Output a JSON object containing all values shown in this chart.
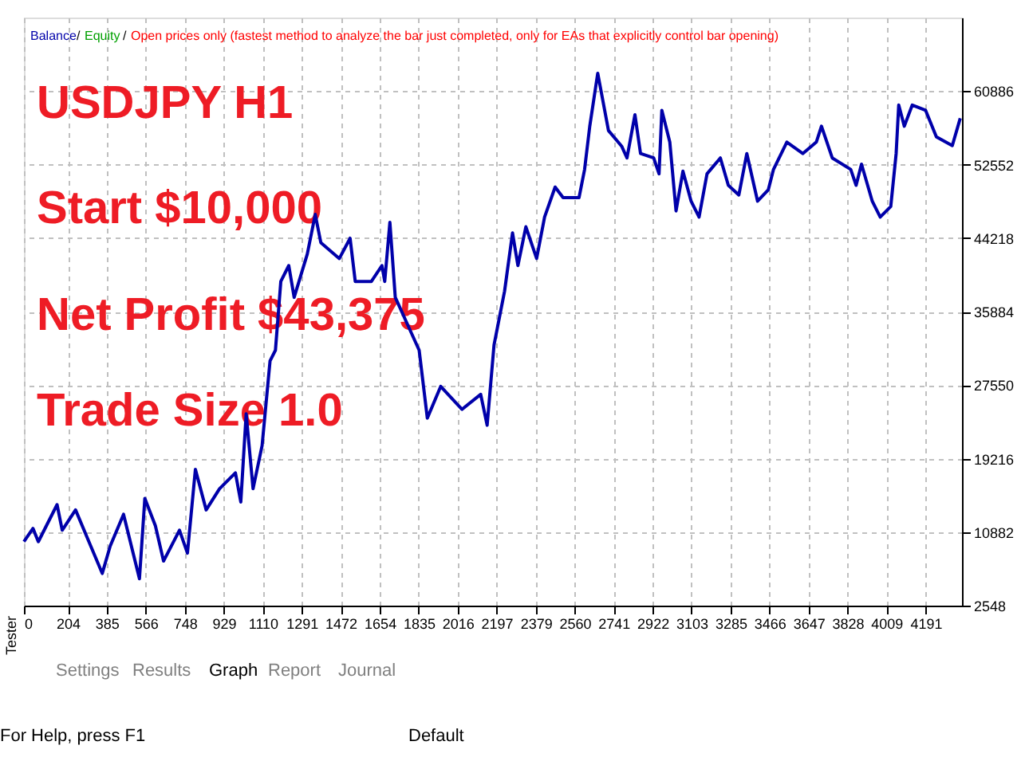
{
  "chart_data": {
    "type": "line",
    "x": [
      0,
      42,
      67,
      154,
      178,
      240,
      302,
      364,
      401,
      463,
      537,
      562,
      611,
      649,
      723,
      760,
      797,
      847,
      909,
      983,
      1008,
      1033,
      1065,
      1107,
      1144,
      1169,
      1194,
      1231,
      1256,
      1317,
      1354,
      1380,
      1466,
      1516,
      1540,
      1615,
      1664,
      1677,
      1701,
      1726,
      1837,
      1875,
      1937,
      2036,
      2123,
      2153,
      2185,
      2234,
      2271,
      2296,
      2333,
      2383,
      2420,
      2469,
      2506,
      2580,
      2606,
      2630,
      2667,
      2717,
      2779,
      2803,
      2840,
      2866,
      2927,
      2952,
      2965,
      3002,
      3031,
      3063,
      3101,
      3138,
      3175,
      3237,
      3274,
      3323,
      3360,
      3410,
      3460,
      3484,
      3546,
      3620,
      3683,
      3707,
      3757,
      3843,
      3868,
      3893,
      3943,
      3980,
      4029,
      4054,
      4066,
      4092,
      4129,
      4191,
      4241,
      4315,
      4352
    ],
    "series": [
      {
        "name": "Balance",
        "color": "#0000aa",
        "values": [
          9800,
          11300,
          9800,
          14000,
          11100,
          13400,
          9800,
          6200,
          9300,
          12900,
          5600,
          14700,
          11600,
          7600,
          11100,
          8500,
          18000,
          13400,
          15800,
          17600,
          14300,
          24300,
          15800,
          20700,
          30300,
          31500,
          39300,
          41100,
          37500,
          42400,
          46900,
          43700,
          41900,
          44200,
          39300,
          39300,
          41100,
          39300,
          46000,
          37500,
          31500,
          23800,
          27400,
          24800,
          26500,
          23000,
          32100,
          38200,
          44800,
          41100,
          45500,
          41900,
          46600,
          50000,
          48800,
          48800,
          52000,
          56900,
          62900,
          56400,
          54600,
          53300,
          58200,
          53800,
          53300,
          51500,
          58700,
          55100,
          47300,
          51800,
          48400,
          46600,
          51500,
          53300,
          50200,
          49100,
          53800,
          48400,
          49700,
          52000,
          55100,
          53800,
          55100,
          56900,
          53300,
          52000,
          50200,
          52600,
          48400,
          46600,
          47800,
          53800,
          59300,
          56900,
          59300,
          58700,
          55700,
          54700,
          57800
        ]
      }
    ],
    "xlim": [
      0,
      4360
    ],
    "xticks": [
      0,
      204,
      385,
      566,
      748,
      929,
      1110,
      1291,
      1472,
      1654,
      1835,
      2016,
      2197,
      2379,
      2560,
      2741,
      2922,
      3103,
      3285,
      3466,
      3647,
      3828,
      4009,
      4191
    ],
    "ylim": [
      2548,
      69220
    ],
    "yticks": [
      2548,
      10882,
      19216,
      27550,
      35884,
      44218,
      52552,
      60886
    ],
    "grid": true,
    "legend": "top left",
    "line_style": "solid",
    "marker": "none",
    "annotations": [
      "/",
      "Equity",
      "/",
      "Open prices only (fastest method to analyze the bar just completed, only for EAs that explicitly control bar opening)",
      "USDJPY H1",
      "Start $10,000",
      "Net Profit $43,375",
      "Trade Size 1.0",
      "Tester",
      "Settings",
      "Results",
      "Graph",
      "Report",
      "Journal",
      "For Help, press F1",
      "Default"
    ]
  }
}
